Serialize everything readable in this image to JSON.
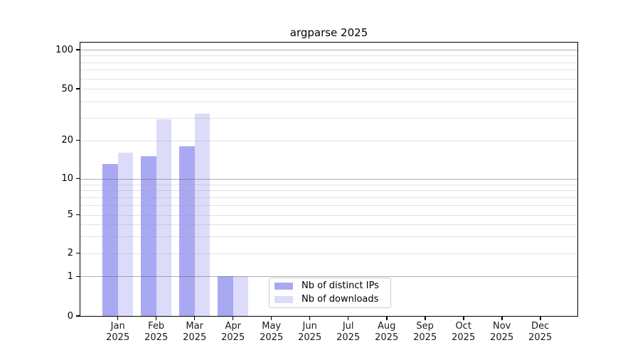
{
  "title": "argparse 2025",
  "legend": {
    "items": [
      {
        "label": "Nb of distinct IPs",
        "color": "#a9a9f3"
      },
      {
        "label": "Nb of downloads",
        "color": "#dcdcfa"
      }
    ]
  },
  "y_axis": {
    "tick_labels": [
      "100",
      "50",
      "20",
      "10",
      "5",
      "2",
      "1",
      "0"
    ],
    "tick_values": [
      100,
      50,
      20,
      10,
      5,
      2,
      1,
      0
    ]
  },
  "x_axis": {
    "year": "2025",
    "months": [
      "Jan",
      "Feb",
      "Mar",
      "Apr",
      "May",
      "Jun",
      "Jul",
      "Aug",
      "Sep",
      "Oct",
      "Nov",
      "Dec"
    ]
  },
  "chart_data": {
    "type": "bar",
    "title": "argparse 2025",
    "categories": [
      "Jan 2025",
      "Feb 2025",
      "Mar 2025",
      "Apr 2025",
      "May 2025",
      "Jun 2025",
      "Jul 2025",
      "Aug 2025",
      "Sep 2025",
      "Oct 2025",
      "Nov 2025",
      "Dec 2025"
    ],
    "series": [
      {
        "name": "Nb of distinct IPs",
        "color": "#a9a9f3",
        "values": [
          13,
          15,
          18,
          1,
          0,
          0,
          0,
          0,
          0,
          0,
          0,
          0
        ]
      },
      {
        "name": "Nb of downloads",
        "color": "#dcdcfa",
        "values": [
          16,
          29,
          32,
          1,
          0,
          0,
          0,
          0,
          0,
          0,
          0,
          0
        ]
      }
    ],
    "xlabel": "",
    "ylabel": "",
    "yscale": "log",
    "yticks": [
      0,
      1,
      2,
      5,
      10,
      20,
      50,
      100
    ],
    "ylim": [
      0,
      120
    ],
    "grid": true,
    "grid_major_at": [
      1,
      10,
      100
    ],
    "grid_minor_at": [
      2,
      3,
      4,
      5,
      6,
      7,
      8,
      9,
      20,
      30,
      40,
      50,
      60,
      70,
      80,
      90
    ],
    "legend_position": "lower center",
    "bar_colors": {
      "distinct_ips": "#a9a9f3",
      "downloads": "#dcdcfa"
    }
  }
}
